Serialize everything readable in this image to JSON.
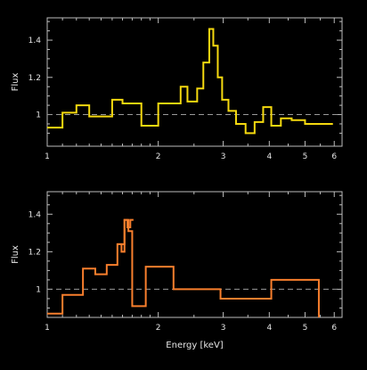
{
  "chart_data": [
    {
      "type": "line",
      "step": true,
      "xscale": "log",
      "xlim": [
        1,
        6.3
      ],
      "ylim": [
        0.83,
        1.52
      ],
      "xticks_major": [
        1,
        2,
        3,
        4,
        5,
        6
      ],
      "xtick_labels": [
        "1",
        "2",
        "3",
        "4",
        "5",
        "6"
      ],
      "yticks_major": [
        1.0,
        1.2,
        1.4
      ],
      "ytick_labels": [
        "1",
        "1.2",
        "1.4"
      ],
      "xlabel": "",
      "ylabel": "Flux",
      "reference_y": 1.0,
      "color": "#f5d90f",
      "series": [
        {
          "edges": [
            1.0,
            1.1,
            1.2,
            1.3,
            1.5,
            1.6,
            1.8,
            2.0,
            2.3,
            2.4,
            2.55,
            2.65,
            2.75,
            2.82,
            2.9,
            2.98,
            3.1,
            3.25,
            3.45,
            3.65,
            3.85,
            4.05,
            4.3,
            4.6,
            5.0,
            5.4,
            5.95
          ],
          "values": [
            0.93,
            1.01,
            1.05,
            0.99,
            1.08,
            1.06,
            0.94,
            1.06,
            1.15,
            1.07,
            1.14,
            1.28,
            1.46,
            1.37,
            1.2,
            1.08,
            1.02,
            0.95,
            0.9,
            0.96,
            1.04,
            0.94,
            0.98,
            0.97,
            0.95,
            0.95
          ]
        }
      ]
    },
    {
      "type": "line",
      "step": true,
      "xscale": "log",
      "xlim": [
        1,
        6.3
      ],
      "ylim": [
        0.85,
        1.52
      ],
      "xticks_major": [
        1,
        2,
        3,
        4,
        5,
        6
      ],
      "xtick_labels": [
        "1",
        "2",
        "3",
        "4",
        "5",
        "6"
      ],
      "yticks_major": [
        1.0,
        1.2,
        1.4
      ],
      "ytick_labels": [
        "1",
        "1.2",
        "1.4"
      ],
      "xlabel": "Energy [keV]",
      "ylabel": "Flux",
      "reference_y": 1.0,
      "color": "#f97f2d",
      "series": [
        {
          "edges": [
            1.0,
            1.1,
            1.25,
            1.35,
            1.45,
            1.55,
            1.62,
            1.66,
            1.7,
            1.75,
            1.85,
            2.2,
            2.95,
            4.05,
            5.45
          ],
          "values": [
            0.87,
            0.97,
            1.11,
            1.08,
            1.13,
            1.24,
            1.37,
            1.31,
            0.91,
            0.91,
            1.12,
            1.0,
            0.95,
            1.05,
            0.85
          ],
          "inner_edges": [
            1.55,
            1.59,
            1.62,
            1.65,
            1.68
          ],
          "inner_values": [
            1.24,
            1.2,
            1.37,
            1.33,
            1.37
          ]
        }
      ]
    }
  ]
}
